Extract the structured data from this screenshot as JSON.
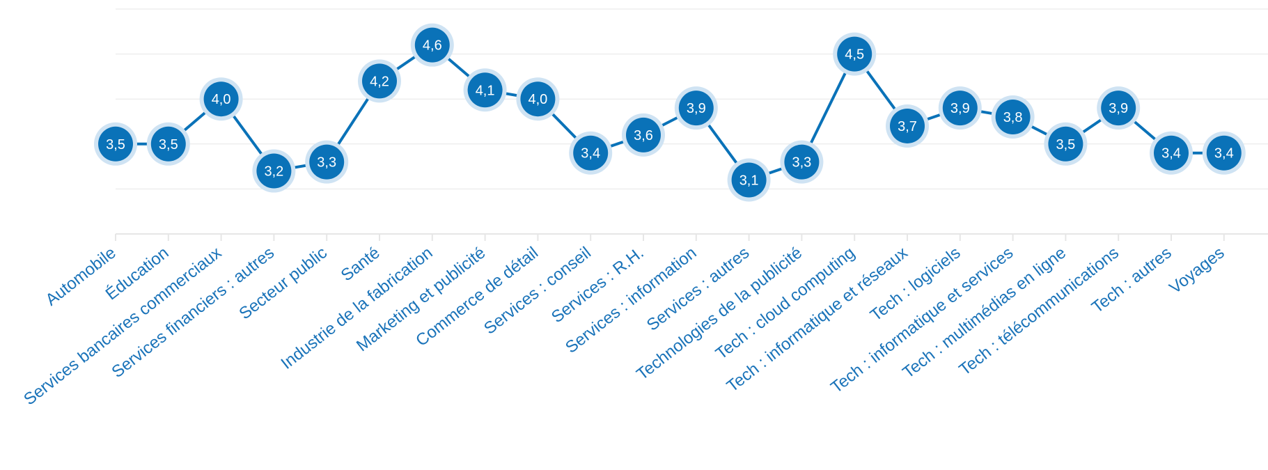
{
  "chart_data": {
    "type": "line",
    "title": "",
    "xlabel": "",
    "ylabel": "",
    "ylim": [
      2.5,
      5.0
    ],
    "grid": true,
    "colors": {
      "series": "#0a72b8",
      "halo": "#cfe3f3",
      "tick_label": "#1a73b9",
      "data_label_text": "#ffffff",
      "grid": "#e6e6e6"
    },
    "categories": [
      "Automobile",
      "Éducation",
      "Services bancaires commerciaux",
      "Services financiers : autres",
      "Secteur public",
      "Santé",
      "Industrie de la fabrication",
      "Marketing et publicité",
      "Commerce de détail",
      "Services : conseil",
      "Services : R.H.",
      "Services : information",
      "Services : autres",
      "Technologies de la publicité",
      "Tech : cloud computing",
      "Tech : informatique et réseaux",
      "Tech : logiciels",
      "Tech : informatique et services",
      "Tech : multimédias en ligne",
      "Tech : télécommunications",
      "Tech : autres",
      "Voyages"
    ],
    "series": [
      {
        "values": [
          3.5,
          3.5,
          4.0,
          3.2,
          3.3,
          4.2,
          4.6,
          4.1,
          4.0,
          3.4,
          3.6,
          3.9,
          3.1,
          3.3,
          4.5,
          3.7,
          3.9,
          3.8,
          3.5,
          3.9,
          3.4,
          3.4
        ],
        "labels": [
          "3,5",
          "3,5",
          "4,0",
          "3,2",
          "3,3",
          "4,2",
          "4,6",
          "4,1",
          "4,0",
          "3,4",
          "3,6",
          "3,9",
          "3,1",
          "3,3",
          "4,5",
          "3,7",
          "3,9",
          "3,8",
          "3,5",
          "3,9",
          "3,4",
          "3,4"
        ]
      }
    ]
  }
}
